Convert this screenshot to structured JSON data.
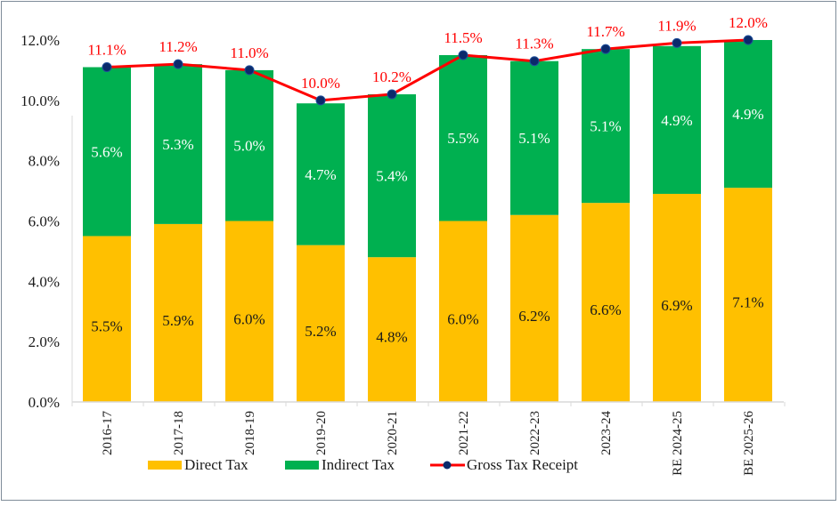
{
  "chart_data": {
    "type": "bar",
    "subtype": "stacked-bar-with-line",
    "title": "",
    "xlabel": "",
    "ylabel": "",
    "ylim": [
      0,
      12
    ],
    "y_ticks": [
      "0.0%",
      "2.0%",
      "4.0%",
      "6.0%",
      "8.0%",
      "10.0%",
      "12.0%"
    ],
    "y_tick_values": [
      0,
      2,
      4,
      6,
      8,
      10,
      12
    ],
    "grid": false,
    "legend_position": "bottom",
    "categories": [
      "2016-17",
      "2017-18",
      "2018-19",
      "2019-20",
      "2020-21",
      "2021-22",
      "2022-23",
      "2023-24",
      "RE 2024-25",
      "BE 2025-26"
    ],
    "series": [
      {
        "name": "Direct Tax",
        "kind": "bar",
        "color": "#ffc000",
        "label_color": "#1a1a1a",
        "values": [
          5.5,
          5.9,
          6.0,
          5.2,
          4.8,
          6.0,
          6.2,
          6.6,
          6.9,
          7.1
        ],
        "labels": [
          "5.5%",
          "5.9%",
          "6.0%",
          "5.2%",
          "4.8%",
          "6.0%",
          "6.2%",
          "6.6%",
          "6.9%",
          "7.1%"
        ]
      },
      {
        "name": "Indirect Tax",
        "kind": "bar",
        "color": "#00b050",
        "label_color": "#ffffff",
        "values": [
          5.6,
          5.3,
          5.0,
          4.7,
          5.4,
          5.5,
          5.1,
          5.1,
          4.9,
          4.9
        ],
        "labels": [
          "5.6%",
          "5.3%",
          "5.0%",
          "4.7%",
          "5.4%",
          "5.5%",
          "5.1%",
          "5.1%",
          "4.9%",
          "4.9%"
        ]
      },
      {
        "name": "Gross Tax Receipt",
        "kind": "line",
        "color": "#ff0000",
        "marker_color": "#0b2a6b",
        "label_color": "#ff0000",
        "values": [
          11.1,
          11.2,
          11.0,
          10.0,
          10.2,
          11.5,
          11.3,
          11.7,
          11.9,
          12.0
        ],
        "labels": [
          "11.1%",
          "11.2%",
          "11.0%",
          "10.0%",
          "10.2%",
          "11.5%",
          "11.3%",
          "11.7%",
          "11.9%",
          "12.0%"
        ]
      }
    ]
  }
}
